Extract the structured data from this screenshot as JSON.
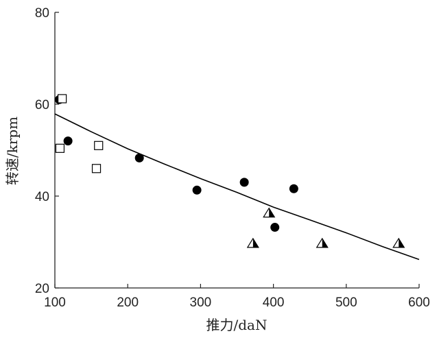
{
  "chart_data": {
    "type": "scatter",
    "title": "",
    "xlabel": "推力/daN",
    "ylabel": "转速/krpm",
    "xlim": [
      100,
      600
    ],
    "ylim": [
      20,
      80
    ],
    "xticks": [
      "100",
      "200",
      "300",
      "400",
      "500",
      "600"
    ],
    "yticks": [
      "20",
      "40",
      "60",
      "80"
    ],
    "grid": false,
    "legend": "none",
    "series": [
      {
        "marker": "filled-circle",
        "color": "#000000",
        "points": [
          [
            106,
            61
          ],
          [
            118,
            52
          ],
          [
            216,
            48.3
          ],
          [
            295,
            41.3
          ],
          [
            360,
            43
          ],
          [
            402,
            33.2
          ],
          [
            428,
            41.6
          ]
        ]
      },
      {
        "marker": "open-square",
        "color": "#000000",
        "points": [
          [
            110,
            61.2
          ],
          [
            107,
            50.4
          ],
          [
            160,
            51
          ],
          [
            157,
            46
          ]
        ]
      },
      {
        "marker": "half-filled-triangle",
        "color": "#000000",
        "points": [
          [
            394,
            36.4
          ],
          [
            372,
            29.8
          ],
          [
            467,
            29.8
          ],
          [
            572,
            29.8
          ]
        ]
      },
      {
        "marker": "line",
        "color": "#000000",
        "points": [
          [
            100,
            57.9
          ],
          [
            150,
            54
          ],
          [
            200,
            50.3
          ],
          [
            250,
            47
          ],
          [
            300,
            43.8
          ],
          [
            350,
            40.8
          ],
          [
            400,
            37.6
          ],
          [
            450,
            34.8
          ],
          [
            500,
            32
          ],
          [
            550,
            29
          ],
          [
            600,
            26.2
          ]
        ]
      }
    ]
  }
}
